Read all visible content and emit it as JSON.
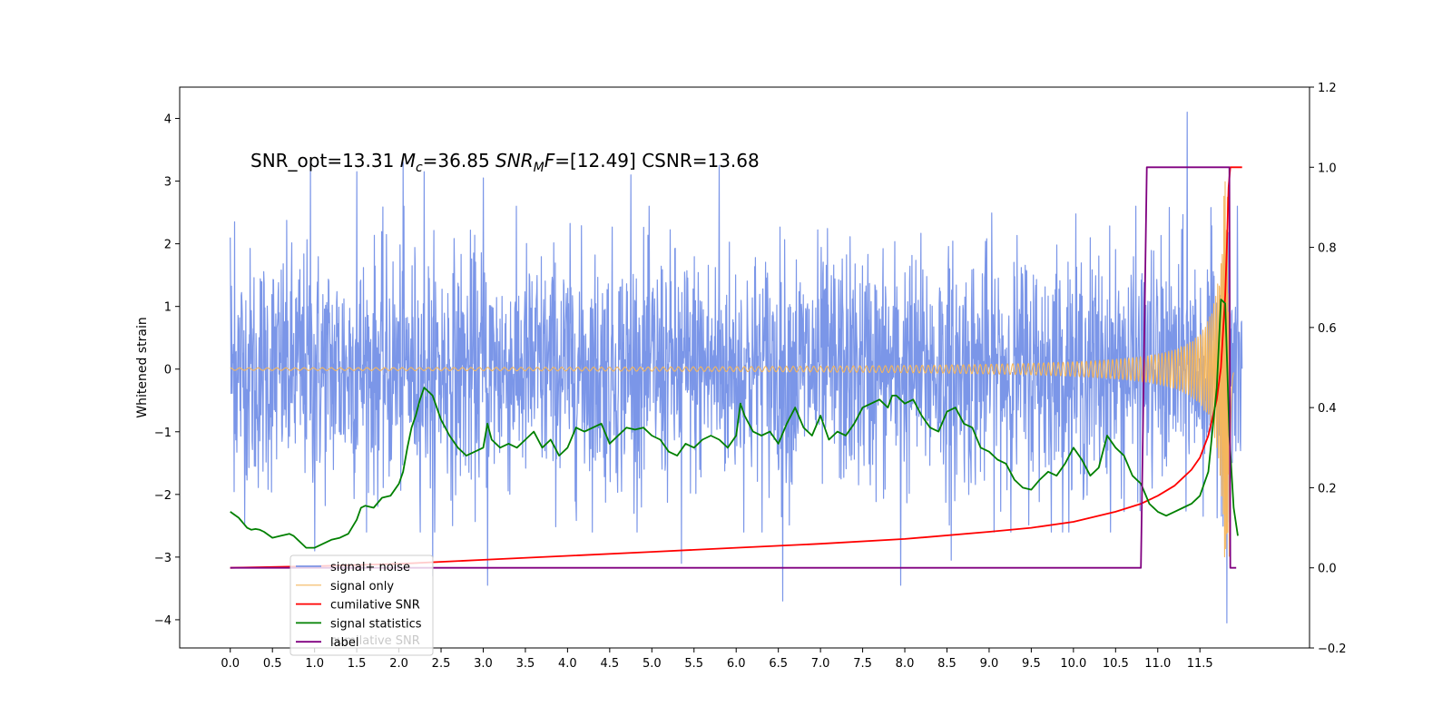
{
  "chart_data": {
    "type": "line",
    "title": "",
    "annotation": {
      "prefix": "SNR_opt=13.31 ",
      "mc_symbol": "M",
      "mc_subscript": "c",
      "mc_value": "=36.85  ",
      "snr_symbol": "SNR",
      "snr_subscript": "M",
      "snr_f": "F",
      "snr_value": "=[12.49] CSNR=13.68"
    },
    "xlabel": "",
    "ylabel_left": "Whitened strain",
    "ylabel_right": "",
    "x_ticks": [
      "0.0",
      "0.5",
      "1.0",
      "1.5",
      "2.0",
      "2.5",
      "3.0",
      "3.5",
      "4.0",
      "4.5",
      "5.0",
      "5.5",
      "6.0",
      "6.5",
      "7.0",
      "7.5",
      "8.0",
      "8.5",
      "9.0",
      "9.5",
      "10.0",
      "10.5",
      "11.0",
      "11.5"
    ],
    "y_left_ticks": [
      "4",
      "3",
      "2",
      "1",
      "0",
      "−1",
      "−2",
      "−3",
      "−4"
    ],
    "y_right_ticks": [
      "1.2",
      "1.0",
      "0.8",
      "0.6",
      "0.4",
      "0.2",
      "0.0",
      "−0.2"
    ],
    "xlim": [
      -0.6,
      12.8
    ],
    "ylim_left": [
      -4.45,
      4.5
    ],
    "ylim_right": [
      -0.2,
      1.2
    ],
    "grid": false,
    "legend_position": "lower-left",
    "legend_ghost_text": "cumilative SNR",
    "series": [
      {
        "name": "signal+ noise",
        "axis": "left",
        "color": "#7b96e8",
        "style": "noise",
        "x_range": [
          0.0,
          12.0
        ],
        "std": 0.95,
        "visible_peaks": [
          [
            0.0,
            2.1
          ],
          [
            0.05,
            2.35
          ],
          [
            0.3,
            -1.55
          ],
          [
            0.95,
            3.35
          ],
          [
            1.0,
            -2.9
          ],
          [
            1.5,
            3.15
          ],
          [
            2.05,
            3.3
          ],
          [
            2.3,
            3.15
          ],
          [
            2.4,
            -3.3
          ],
          [
            3.0,
            3.05
          ],
          [
            3.05,
            -3.45
          ],
          [
            4.75,
            3.1
          ],
          [
            5.35,
            -3.1
          ],
          [
            5.8,
            3.25
          ],
          [
            6.55,
            -3.7
          ],
          [
            7.95,
            -3.45
          ],
          [
            8.55,
            -3.05
          ],
          [
            11.35,
            4.1
          ],
          [
            11.82,
            3.5
          ],
          [
            11.82,
            -4.05
          ]
        ]
      },
      {
        "name": "signal only",
        "axis": "left",
        "color": "#f4b65d",
        "style": "chirp",
        "x_range": [
          0.0,
          11.9
        ],
        "amplitude_start": 0.02,
        "amplitude_end": 3.0,
        "merger_time": 11.85
      },
      {
        "name": "cumilative SNR",
        "axis": "right",
        "color": "#ff0000",
        "x": [
          0.0,
          1.0,
          2.0,
          3.0,
          4.0,
          5.0,
          6.0,
          7.0,
          8.0,
          9.0,
          9.5,
          10.0,
          10.5,
          10.8,
          11.0,
          11.2,
          11.4,
          11.5,
          11.6,
          11.7,
          11.75,
          11.8,
          11.82,
          11.84,
          11.86,
          11.9,
          12.0
        ],
        "y": [
          0.0,
          0.004,
          0.01,
          0.02,
          0.03,
          0.04,
          0.05,
          0.06,
          0.072,
          0.09,
          0.1,
          0.115,
          0.14,
          0.16,
          0.18,
          0.205,
          0.245,
          0.275,
          0.33,
          0.42,
          0.5,
          0.68,
          0.8,
          0.95,
          1.0,
          1.0,
          1.0
        ]
      },
      {
        "name": "signal statistics",
        "axis": "right",
        "color": "#008000",
        "x": [
          0.0,
          0.1,
          0.2,
          0.25,
          0.3,
          0.35,
          0.4,
          0.5,
          0.6,
          0.7,
          0.75,
          0.8,
          0.9,
          1.0,
          1.1,
          1.2,
          1.3,
          1.4,
          1.5,
          1.55,
          1.6,
          1.7,
          1.8,
          1.9,
          2.0,
          2.05,
          2.1,
          2.15,
          2.2,
          2.25,
          2.3,
          2.35,
          2.4,
          2.5,
          2.6,
          2.7,
          2.8,
          2.9,
          3.0,
          3.05,
          3.1,
          3.2,
          3.3,
          3.4,
          3.5,
          3.6,
          3.7,
          3.8,
          3.85,
          3.9,
          4.0,
          4.1,
          4.2,
          4.3,
          4.4,
          4.5,
          4.6,
          4.7,
          4.8,
          4.9,
          5.0,
          5.1,
          5.2,
          5.3,
          5.4,
          5.5,
          5.6,
          5.7,
          5.8,
          5.9,
          6.0,
          6.05,
          6.1,
          6.2,
          6.3,
          6.4,
          6.5,
          6.6,
          6.7,
          6.8,
          6.9,
          7.0,
          7.1,
          7.2,
          7.3,
          7.4,
          7.5,
          7.6,
          7.7,
          7.8,
          7.85,
          7.9,
          8.0,
          8.1,
          8.2,
          8.3,
          8.4,
          8.5,
          8.6,
          8.7,
          8.8,
          8.9,
          9.0,
          9.1,
          9.2,
          9.3,
          9.4,
          9.5,
          9.6,
          9.7,
          9.8,
          9.9,
          10.0,
          10.1,
          10.2,
          10.3,
          10.4,
          10.5,
          10.6,
          10.7,
          10.8,
          10.9,
          11.0,
          11.1,
          11.2,
          11.3,
          11.4,
          11.5,
          11.6,
          11.7,
          11.75,
          11.8,
          11.85,
          11.9,
          11.95
        ],
        "y": [
          0.14,
          0.125,
          0.1,
          0.095,
          0.097,
          0.095,
          0.09,
          0.075,
          0.08,
          0.085,
          0.08,
          0.07,
          0.05,
          0.05,
          0.06,
          0.07,
          0.075,
          0.085,
          0.12,
          0.15,
          0.155,
          0.15,
          0.175,
          0.18,
          0.21,
          0.24,
          0.3,
          0.35,
          0.38,
          0.42,
          0.45,
          0.44,
          0.43,
          0.37,
          0.33,
          0.3,
          0.28,
          0.29,
          0.3,
          0.36,
          0.32,
          0.3,
          0.31,
          0.3,
          0.32,
          0.34,
          0.3,
          0.32,
          0.3,
          0.28,
          0.3,
          0.35,
          0.34,
          0.35,
          0.36,
          0.31,
          0.33,
          0.35,
          0.345,
          0.35,
          0.33,
          0.32,
          0.29,
          0.28,
          0.31,
          0.3,
          0.32,
          0.33,
          0.32,
          0.3,
          0.33,
          0.41,
          0.38,
          0.34,
          0.33,
          0.34,
          0.31,
          0.36,
          0.4,
          0.35,
          0.33,
          0.38,
          0.32,
          0.34,
          0.33,
          0.36,
          0.4,
          0.41,
          0.42,
          0.4,
          0.43,
          0.43,
          0.41,
          0.42,
          0.38,
          0.35,
          0.34,
          0.39,
          0.4,
          0.36,
          0.35,
          0.3,
          0.29,
          0.27,
          0.26,
          0.22,
          0.2,
          0.195,
          0.22,
          0.24,
          0.23,
          0.26,
          0.3,
          0.27,
          0.23,
          0.25,
          0.33,
          0.3,
          0.28,
          0.23,
          0.21,
          0.16,
          0.14,
          0.13,
          0.14,
          0.15,
          0.16,
          0.18,
          0.24,
          0.45,
          0.67,
          0.66,
          0.33,
          0.15,
          0.08
        ]
      },
      {
        "name": "label",
        "axis": "right",
        "color": "#800080",
        "x": [
          0.0,
          10.8,
          10.87,
          11.85,
          11.86,
          11.93
        ],
        "y": [
          0.0,
          0.0,
          1.0,
          1.0,
          0.0,
          0.0
        ]
      }
    ]
  }
}
